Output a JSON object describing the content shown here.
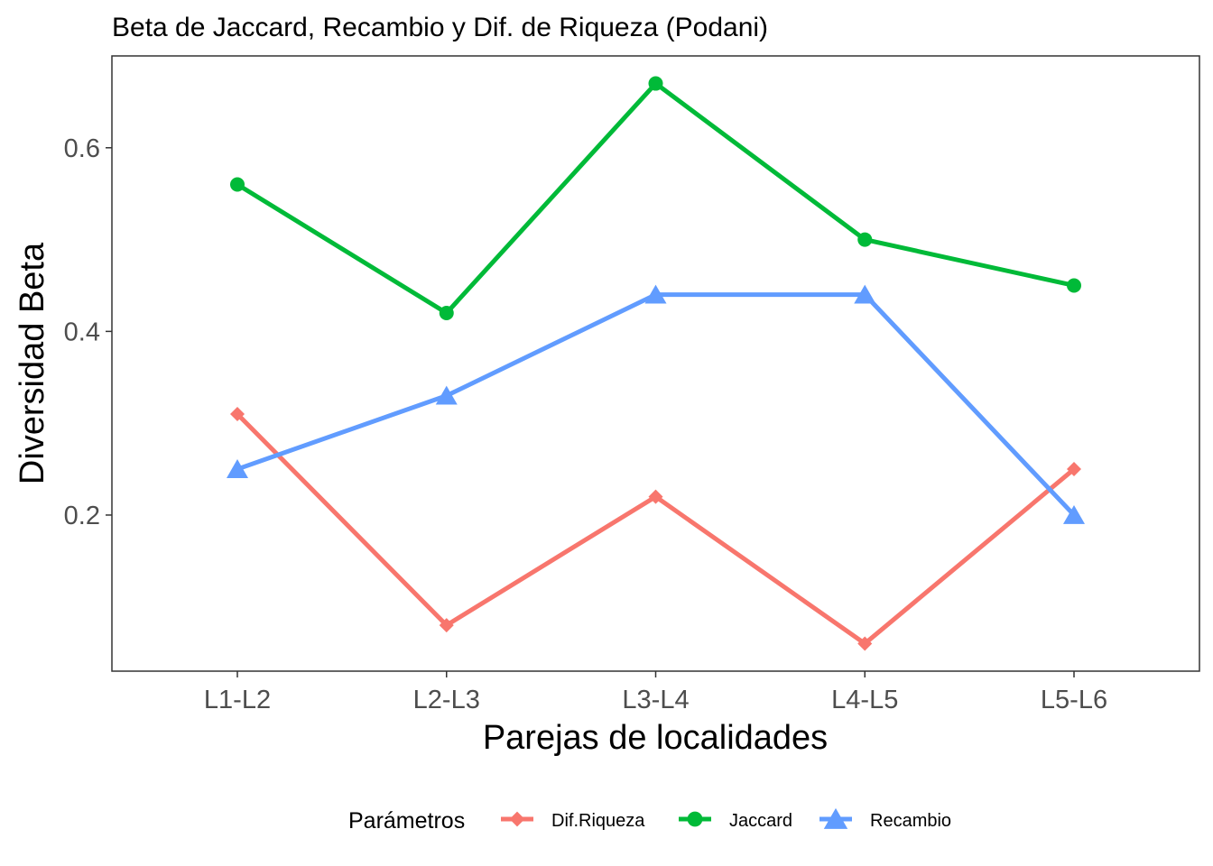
{
  "chart_data": {
    "type": "line",
    "title": "Beta de Jaccard, Recambio y Dif. de Riqueza (Podani)",
    "xlabel": "Parejas de localidades",
    "ylabel": "Diversidad Beta",
    "categories": [
      "L1-L2",
      "L2-L3",
      "L3-L4",
      "L4-L5",
      "L5-L6"
    ],
    "ylim": [
      0.03,
      0.7
    ],
    "yticks": [
      0.2,
      0.4,
      0.6
    ],
    "ytick_labels": [
      "0.2",
      "0.4",
      "0.6"
    ],
    "grid": false,
    "legend": {
      "title": "Parámetros",
      "position": "bottom"
    },
    "series": [
      {
        "name": "Dif.Riqueza",
        "color": "#F8766D",
        "marker": "diamond",
        "values": [
          0.31,
          0.08,
          0.22,
          0.06,
          0.25
        ]
      },
      {
        "name": "Jaccard",
        "color": "#00BA38",
        "marker": "circle",
        "values": [
          0.56,
          0.42,
          0.67,
          0.5,
          0.45
        ]
      },
      {
        "name": "Recambio",
        "color": "#619CFF",
        "marker": "triangle",
        "values": [
          0.25,
          0.33,
          0.44,
          0.44,
          0.2
        ]
      }
    ]
  }
}
